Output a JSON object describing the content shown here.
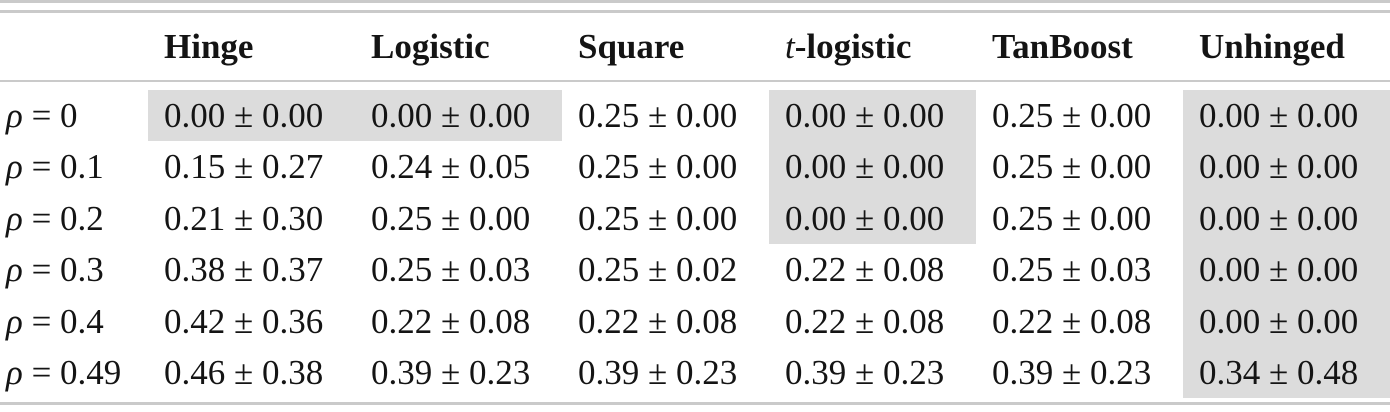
{
  "table": {
    "corner_label": "",
    "columns": [
      {
        "prefix": "",
        "label": "Hinge"
      },
      {
        "prefix": "",
        "label": "Logistic"
      },
      {
        "prefix": "",
        "label": "Square"
      },
      {
        "prefix": "t",
        "label": "-logistic"
      },
      {
        "prefix": "",
        "label": "TanBoost"
      },
      {
        "prefix": "",
        "label": "Unhinged"
      }
    ],
    "rows": [
      {
        "label": "ρ = 0",
        "cells": [
          {
            "value": "0.00 ± 0.00",
            "highlighted": true
          },
          {
            "value": "0.00 ± 0.00",
            "highlighted": true
          },
          {
            "value": "0.25 ± 0.00",
            "highlighted": false
          },
          {
            "value": "0.00 ± 0.00",
            "highlighted": true
          },
          {
            "value": "0.25 ± 0.00",
            "highlighted": false
          },
          {
            "value": "0.00 ± 0.00",
            "highlighted": true
          }
        ]
      },
      {
        "label": "ρ = 0.1",
        "cells": [
          {
            "value": "0.15 ± 0.27",
            "highlighted": false
          },
          {
            "value": "0.24 ± 0.05",
            "highlighted": false
          },
          {
            "value": "0.25 ± 0.00",
            "highlighted": false
          },
          {
            "value": "0.00 ± 0.00",
            "highlighted": true
          },
          {
            "value": "0.25 ± 0.00",
            "highlighted": false
          },
          {
            "value": "0.00 ± 0.00",
            "highlighted": true
          }
        ]
      },
      {
        "label": "ρ = 0.2",
        "cells": [
          {
            "value": "0.21 ± 0.30",
            "highlighted": false
          },
          {
            "value": "0.25 ± 0.00",
            "highlighted": false
          },
          {
            "value": "0.25 ± 0.00",
            "highlighted": false
          },
          {
            "value": "0.00 ± 0.00",
            "highlighted": true
          },
          {
            "value": "0.25 ± 0.00",
            "highlighted": false
          },
          {
            "value": "0.00 ± 0.00",
            "highlighted": true
          }
        ]
      },
      {
        "label": "ρ = 0.3",
        "cells": [
          {
            "value": "0.38 ± 0.37",
            "highlighted": false
          },
          {
            "value": "0.25 ± 0.03",
            "highlighted": false
          },
          {
            "value": "0.25 ± 0.02",
            "highlighted": false
          },
          {
            "value": "0.22 ± 0.08",
            "highlighted": false
          },
          {
            "value": "0.25 ± 0.03",
            "highlighted": false
          },
          {
            "value": "0.00 ± 0.00",
            "highlighted": true
          }
        ]
      },
      {
        "label": "ρ = 0.4",
        "cells": [
          {
            "value": "0.42 ± 0.36",
            "highlighted": false
          },
          {
            "value": "0.22 ± 0.08",
            "highlighted": false
          },
          {
            "value": "0.22 ± 0.08",
            "highlighted": false
          },
          {
            "value": "0.22 ± 0.08",
            "highlighted": false
          },
          {
            "value": "0.22 ± 0.08",
            "highlighted": false
          },
          {
            "value": "0.00 ± 0.00",
            "highlighted": true
          }
        ]
      },
      {
        "label": "ρ = 0.49",
        "cells": [
          {
            "value": "0.46 ± 0.38",
            "highlighted": false
          },
          {
            "value": "0.39 ± 0.23",
            "highlighted": false
          },
          {
            "value": "0.39 ± 0.23",
            "highlighted": false
          },
          {
            "value": "0.39 ± 0.23",
            "highlighted": false
          },
          {
            "value": "0.39 ± 0.23",
            "highlighted": false
          },
          {
            "value": "0.34 ± 0.48",
            "highlighted": true
          }
        ]
      }
    ]
  },
  "colors": {
    "highlight": "#dcdcdc",
    "rule": "#cacaca",
    "text": "#141414"
  },
  "chart_data": {
    "type": "table",
    "title": "",
    "columns": [
      "",
      "Hinge",
      "Logistic",
      "Square",
      "t-logistic",
      "TanBoost",
      "Unhinged"
    ],
    "rows": [
      [
        "ρ = 0",
        "0.00 ± 0.00",
        "0.00 ± 0.00",
        "0.25 ± 0.00",
        "0.00 ± 0.00",
        "0.25 ± 0.00",
        "0.00 ± 0.00"
      ],
      [
        "ρ = 0.1",
        "0.15 ± 0.27",
        "0.24 ± 0.05",
        "0.25 ± 0.00",
        "0.00 ± 0.00",
        "0.25 ± 0.00",
        "0.00 ± 0.00"
      ],
      [
        "ρ = 0.2",
        "0.21 ± 0.30",
        "0.25 ± 0.00",
        "0.25 ± 0.00",
        "0.00 ± 0.00",
        "0.25 ± 0.00",
        "0.00 ± 0.00"
      ],
      [
        "ρ = 0.3",
        "0.38 ± 0.37",
        "0.25 ± 0.03",
        "0.25 ± 0.02",
        "0.22 ± 0.08",
        "0.25 ± 0.03",
        "0.00 ± 0.00"
      ],
      [
        "ρ = 0.4",
        "0.42 ± 0.36",
        "0.22 ± 0.08",
        "0.22 ± 0.08",
        "0.22 ± 0.08",
        "0.22 ± 0.08",
        "0.00 ± 0.00"
      ],
      [
        "ρ = 0.49",
        "0.46 ± 0.38",
        "0.39 ± 0.23",
        "0.39 ± 0.23",
        "0.39 ± 0.23",
        "0.39 ± 0.23",
        "0.34 ± 0.48"
      ]
    ],
    "highlighted_cells_note": "gray-shaded cells",
    "highlighted_cells": [
      [
        0,
        1
      ],
      [
        0,
        2
      ],
      [
        0,
        4
      ],
      [
        0,
        6
      ],
      [
        1,
        4
      ],
      [
        1,
        6
      ],
      [
        2,
        4
      ],
      [
        2,
        6
      ],
      [
        3,
        6
      ],
      [
        4,
        6
      ],
      [
        5,
        6
      ]
    ]
  }
}
